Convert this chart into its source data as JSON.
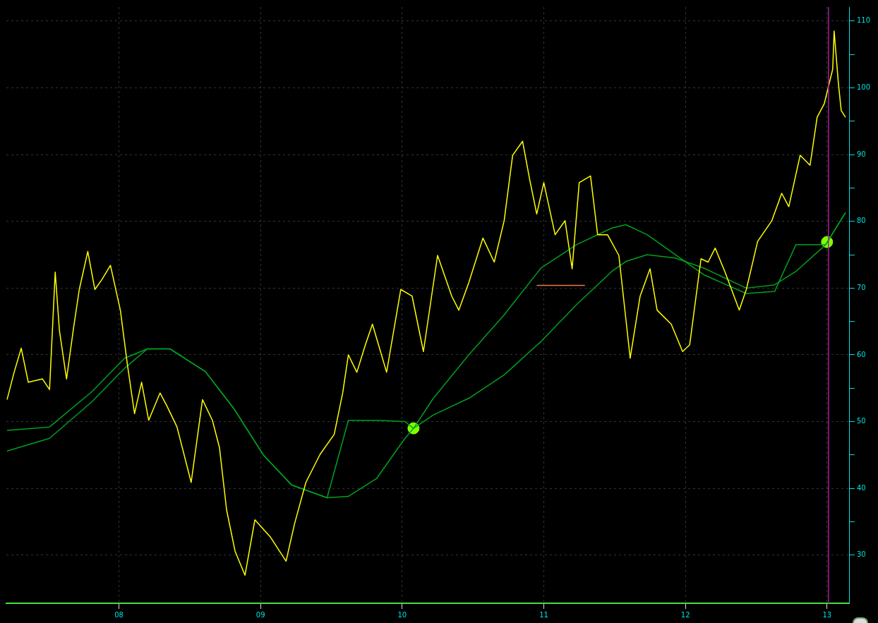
{
  "chart_data": {
    "type": "line",
    "xlim": [
      2007.205,
      2013.16
    ],
    "ylim": [
      22.8,
      112.1
    ],
    "xticks": [
      {
        "value": 2008,
        "label": "08"
      },
      {
        "value": 2009,
        "label": "09"
      },
      {
        "value": 2010,
        "label": "10"
      },
      {
        "value": 2011,
        "label": "11"
      },
      {
        "value": 2012,
        "label": "12"
      },
      {
        "value": 2013,
        "label": "13"
      }
    ],
    "yticks": [
      30,
      {
        "value": 35,
        "label": null
      },
      40,
      {
        "value": 45,
        "label": null
      },
      50,
      {
        "value": 55,
        "label": null
      },
      60,
      {
        "value": 65,
        "label": null
      },
      70,
      {
        "value": 75,
        "label": null
      },
      80,
      {
        "value": 85,
        "label": null
      },
      90,
      {
        "value": 95,
        "label": null
      },
      100,
      {
        "value": 105,
        "label": null
      },
      110
    ],
    "grid": true,
    "legend": false,
    "marker": "none",
    "line_style": "solid",
    "ref_lines": [
      {
        "axis": "x",
        "value": 2013.01,
        "color": "#a020a0"
      }
    ],
    "series": [
      {
        "type": "line",
        "color": "#ffff00",
        "x": [
          2007.21,
          2007.26,
          2007.31,
          2007.36,
          2007.46,
          2007.51,
          2007.55,
          2007.58,
          2007.63,
          2007.68,
          2007.72,
          2007.78,
          2007.83,
          2007.88,
          2007.94,
          2008.01,
          2008.06,
          2008.11,
          2008.16,
          2008.21,
          2008.29,
          2008.34,
          2008.41,
          2008.51,
          2008.59,
          2008.66,
          2008.71,
          2008.76,
          2008.82,
          2008.89,
          2008.96,
          2009.07,
          2009.18,
          2009.24,
          2009.32,
          2009.42,
          2009.52,
          2009.58,
          2009.62,
          2009.68,
          2009.74,
          2009.79,
          2009.89,
          2009.99,
          2010.07,
          2010.15,
          2010.25,
          2010.35,
          2010.4,
          2010.47,
          2010.57,
          2010.65,
          2010.72,
          2010.78,
          2010.85,
          2010.9,
          2010.95,
          2011.0,
          2011.08,
          2011.15,
          2011.2,
          2011.25,
          2011.33,
          2011.38,
          2011.45,
          2011.53,
          2011.61,
          2011.68,
          2011.75,
          2011.8,
          2011.9,
          2011.98,
          2012.03,
          2012.11,
          2012.16,
          2012.21,
          2012.28,
          2012.38,
          2012.43,
          2012.51,
          2012.61,
          2012.68,
          2012.73,
          2012.81,
          2012.88,
          2012.93,
          2012.98,
          2013.04,
          2013.05,
          2013.08,
          2013.1,
          2013.13
        ],
        "values": [
          53.3,
          57.4,
          61.0,
          55.9,
          56.4,
          54.8,
          72.4,
          63.6,
          56.4,
          64.1,
          69.8,
          75.5,
          69.8,
          71.3,
          73.4,
          66.7,
          58.5,
          51.2,
          55.9,
          50.2,
          54.3,
          52.3,
          49.2,
          40.9,
          53.3,
          50.2,
          46.1,
          36.8,
          30.6,
          27.0,
          35.3,
          32.7,
          29.1,
          34.7,
          40.9,
          45.1,
          48.1,
          54.3,
          60.0,
          57.4,
          61.5,
          64.6,
          57.4,
          69.8,
          68.8,
          60.5,
          74.9,
          68.8,
          66.7,
          70.8,
          77.5,
          73.9,
          80.1,
          89.9,
          92.0,
          86.3,
          81.1,
          85.8,
          78.0,
          80.1,
          72.9,
          85.8,
          86.8,
          78.0,
          78.0,
          74.9,
          59.5,
          68.8,
          72.9,
          66.7,
          64.6,
          60.5,
          61.5,
          74.4,
          73.9,
          76.0,
          72.4,
          66.7,
          69.8,
          77.0,
          80.1,
          84.2,
          82.2,
          89.9,
          88.4,
          95.6,
          97.6,
          102.8,
          108.5,
          100.7,
          96.6,
          95.6
        ]
      },
      {
        "type": "line",
        "color": "#00a020",
        "x": [
          2007.21,
          2007.51,
          2007.81,
          2008.04,
          2008.2,
          2008.36,
          2008.61,
          2008.81,
          2009.02,
          2009.22,
          2009.47,
          2009.62,
          2009.82,
          2010.02,
          2010.08,
          2010.22,
          2010.47,
          2010.72,
          2010.98,
          2011.23,
          2011.48,
          2011.58,
          2011.73,
          2011.93,
          2012.13,
          2012.43,
          2012.63,
          2012.78,
          2012.99,
          2013.13
        ],
        "values": [
          45.6,
          47.5,
          53,
          58,
          60.9,
          60.9,
          57.5,
          52,
          45,
          40.5,
          38.6,
          38.8,
          41.5,
          47.5,
          49,
          51,
          53.5,
          57,
          62,
          67.5,
          72.5,
          74,
          75,
          74.5,
          73,
          70,
          70.5,
          72.5,
          76.5,
          81.3
        ]
      },
      {
        "type": "line",
        "color": "#00a020",
        "x": [
          2007.21,
          2007.51,
          2007.81,
          2008.04,
          2008.2,
          2008.36,
          2008.61,
          2008.81,
          2009.02,
          2009.22,
          2009.47,
          2009.62,
          2009.82,
          2010.02,
          2010.08,
          2010.22,
          2010.47,
          2010.72,
          2010.98,
          2011.23,
          2011.48,
          2011.58,
          2011.73,
          2011.93,
          2012.13,
          2012.43,
          2012.63,
          2012.78,
          2012.99,
          2013.13
        ],
        "values": [
          48.7,
          49.2,
          54.5,
          59.5,
          60.9,
          60.9,
          57.5,
          52,
          45,
          40.5,
          38.6,
          50.2,
          50.2,
          50,
          49,
          53.5,
          60,
          66,
          73,
          76.5,
          79,
          79.5,
          78,
          75,
          72,
          69.2,
          69.5,
          76.5,
          76.5,
          81.3
        ]
      },
      {
        "type": "line",
        "color": "#f07850",
        "x": [
          2010.95,
          2011.29
        ],
        "values": [
          70.4,
          70.4
        ]
      },
      {
        "type": "scatter",
        "color": "#80ff00",
        "marker": "circle",
        "x": [
          2010.08,
          2013.0
        ],
        "values": [
          49,
          76.9
        ]
      }
    ]
  }
}
